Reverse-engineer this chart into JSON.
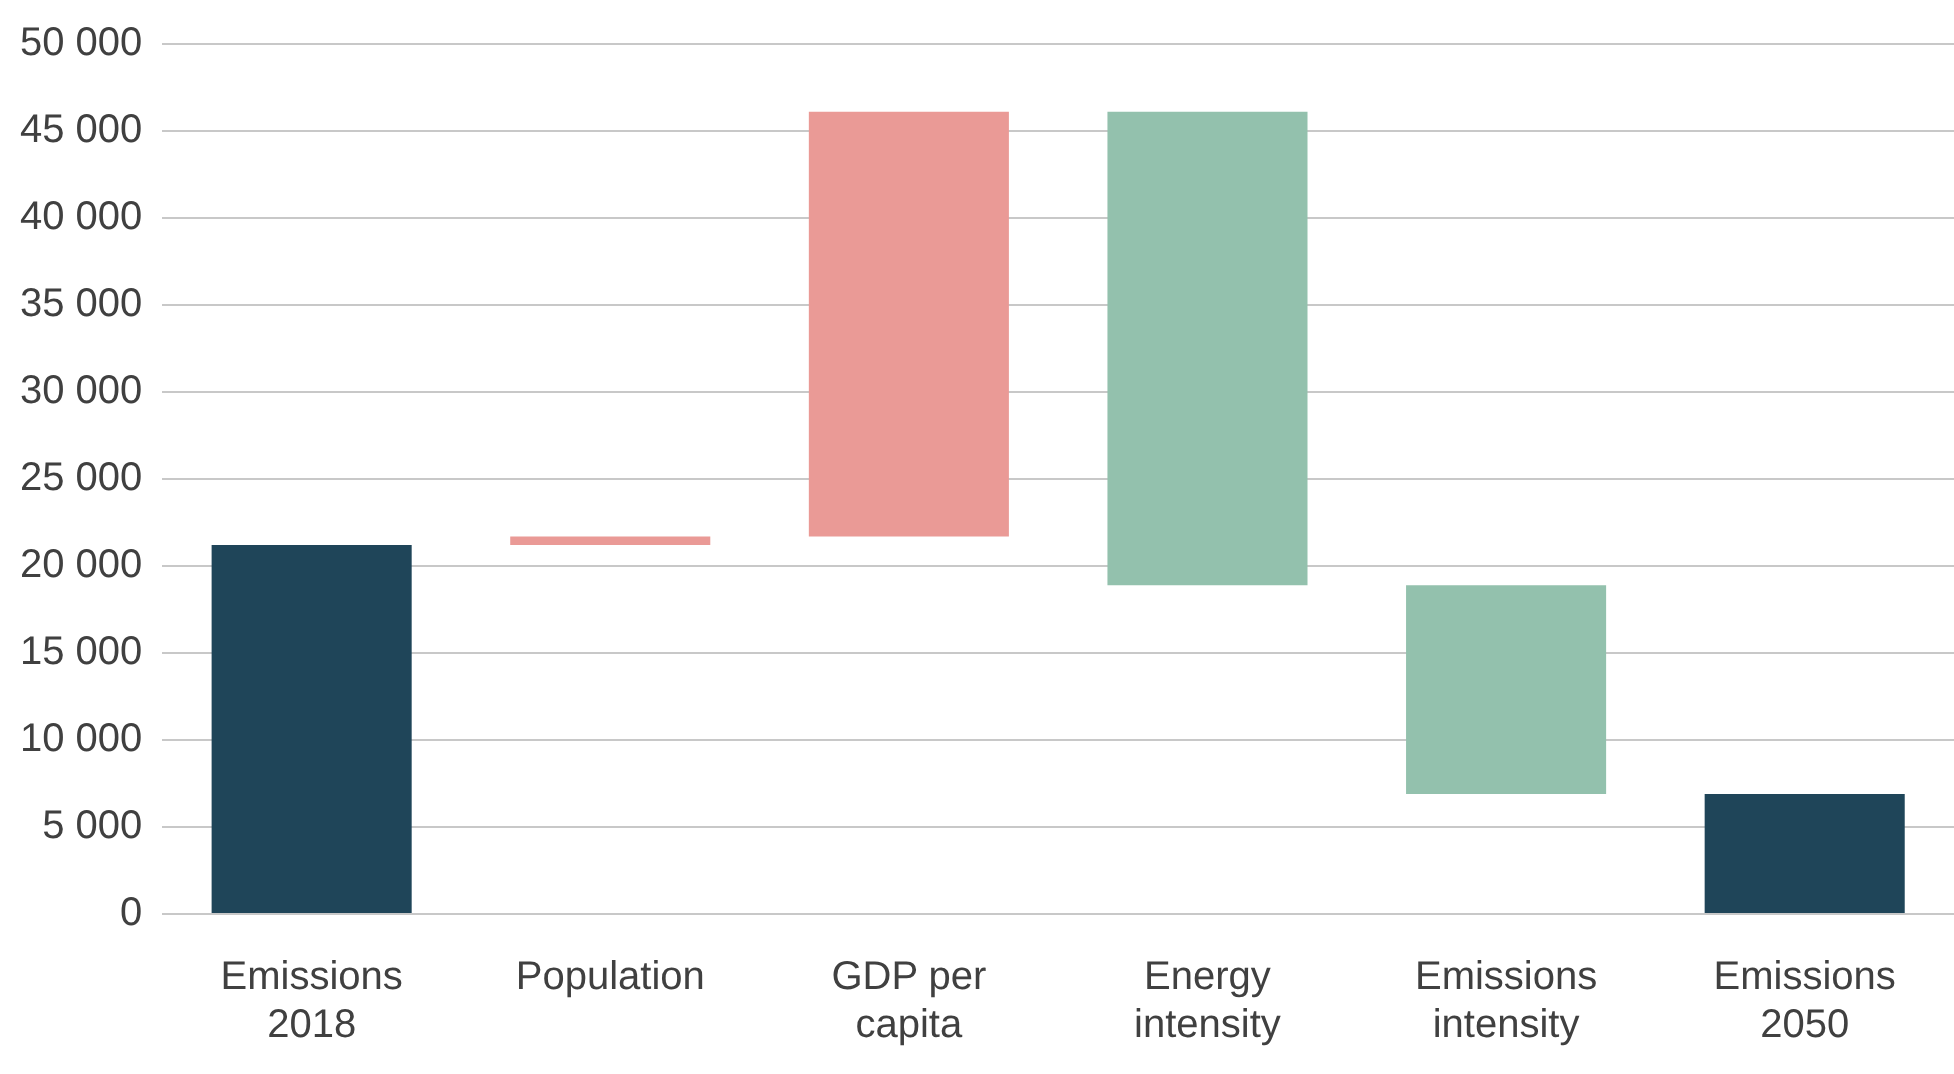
{
  "chart_data": {
    "type": "bar",
    "categories": [
      "Emissions 2018",
      "Population",
      "GDP per capita",
      "Energy intensity",
      "Emissions intensity",
      "Emissions 2050"
    ],
    "base": [
      0,
      21200,
      21700,
      46100,
      18900,
      0
    ],
    "values": [
      21200,
      500,
      24400,
      -27200,
      -12000,
      6900
    ],
    "colors": [
      "#1f4559",
      "#ea9a96",
      "#ea9a96",
      "#93c1ad",
      "#93c1ad",
      "#1f4559"
    ],
    "ylim": [
      0,
      50000
    ],
    "yticks": [
      {
        "value": 0,
        "label": "0"
      },
      {
        "value": 5000,
        "label": "5 000"
      },
      {
        "value": 10000,
        "label": "10 000"
      },
      {
        "value": 15000,
        "label": "15 000"
      },
      {
        "value": 20000,
        "label": "20 000"
      },
      {
        "value": 25000,
        "label": "25 000"
      },
      {
        "value": 30000,
        "label": "30 000"
      },
      {
        "value": 35000,
        "label": "35 000"
      },
      {
        "value": 40000,
        "label": "40 000"
      },
      {
        "value": 45000,
        "label": "45 000"
      },
      {
        "value": 50000,
        "label": "50 000"
      }
    ],
    "grid": "y",
    "legend": false
  }
}
